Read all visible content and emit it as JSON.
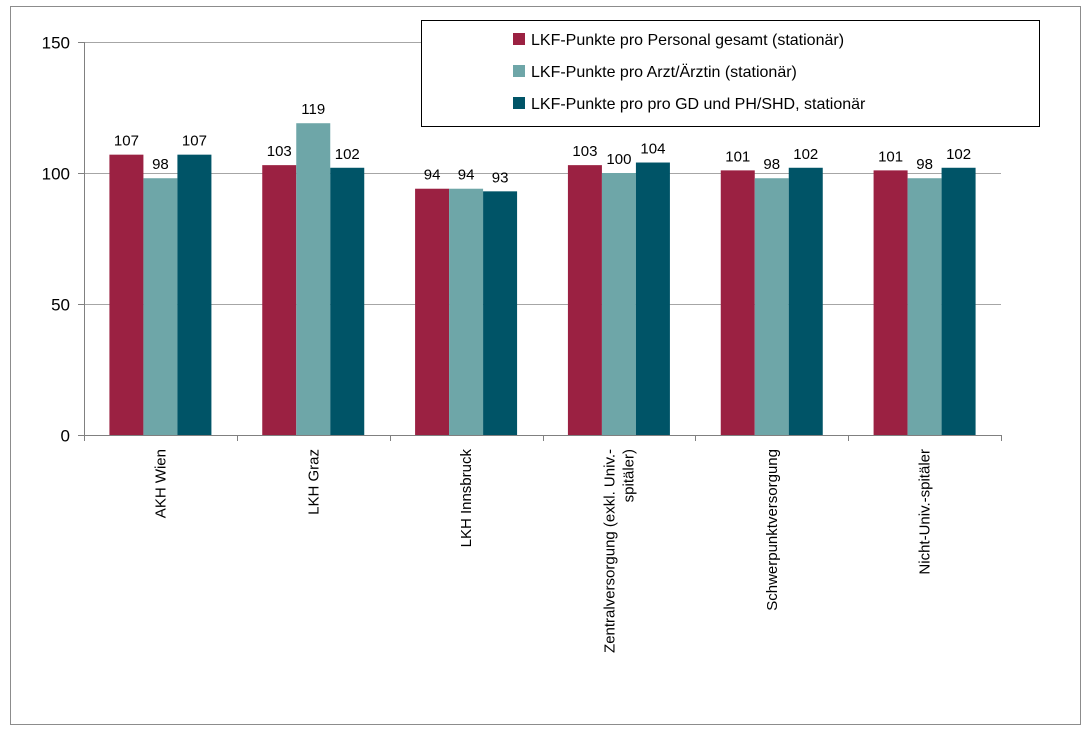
{
  "chart_data": {
    "type": "bar",
    "title": "",
    "xlabel": "",
    "ylabel": "",
    "ylim": [
      0,
      150
    ],
    "yticks": [
      0,
      50,
      100,
      150
    ],
    "grid": true,
    "legend_position": "top-right",
    "categories": [
      "AKH Wien",
      "LKH Graz",
      "LKH Innsbruck",
      "Zentralversorgung (exkl. Univ.-spitäler)",
      "Schwerpunktversorgung",
      "Nicht-Univ.-spitäler"
    ],
    "category_lines": [
      [
        "AKH Wien"
      ],
      [
        "LKH Graz"
      ],
      [
        "LKH Innsbruck"
      ],
      [
        "Zentralversorgung (exkl. Univ.-",
        "spitäler)"
      ],
      [
        "Schwerpunktversorgung"
      ],
      [
        "Nicht-Univ.-spitäler"
      ]
    ],
    "series": [
      {
        "name": "LKF-Punkte pro Personal gesamt (stationär)",
        "color": "#9B2142",
        "values": [
          107,
          103,
          94,
          103,
          101,
          101
        ]
      },
      {
        "name": "LKF-Punkte pro Arzt/Ärztin (stationär)",
        "color": "#6EA6A8",
        "values": [
          98,
          119,
          94,
          100,
          98,
          98
        ]
      },
      {
        "name": "LKF-Punkte pro pro GD und PH/SHD, stationär",
        "color": "#005467",
        "values": [
          107,
          102,
          93,
          104,
          102,
          102
        ]
      }
    ]
  }
}
